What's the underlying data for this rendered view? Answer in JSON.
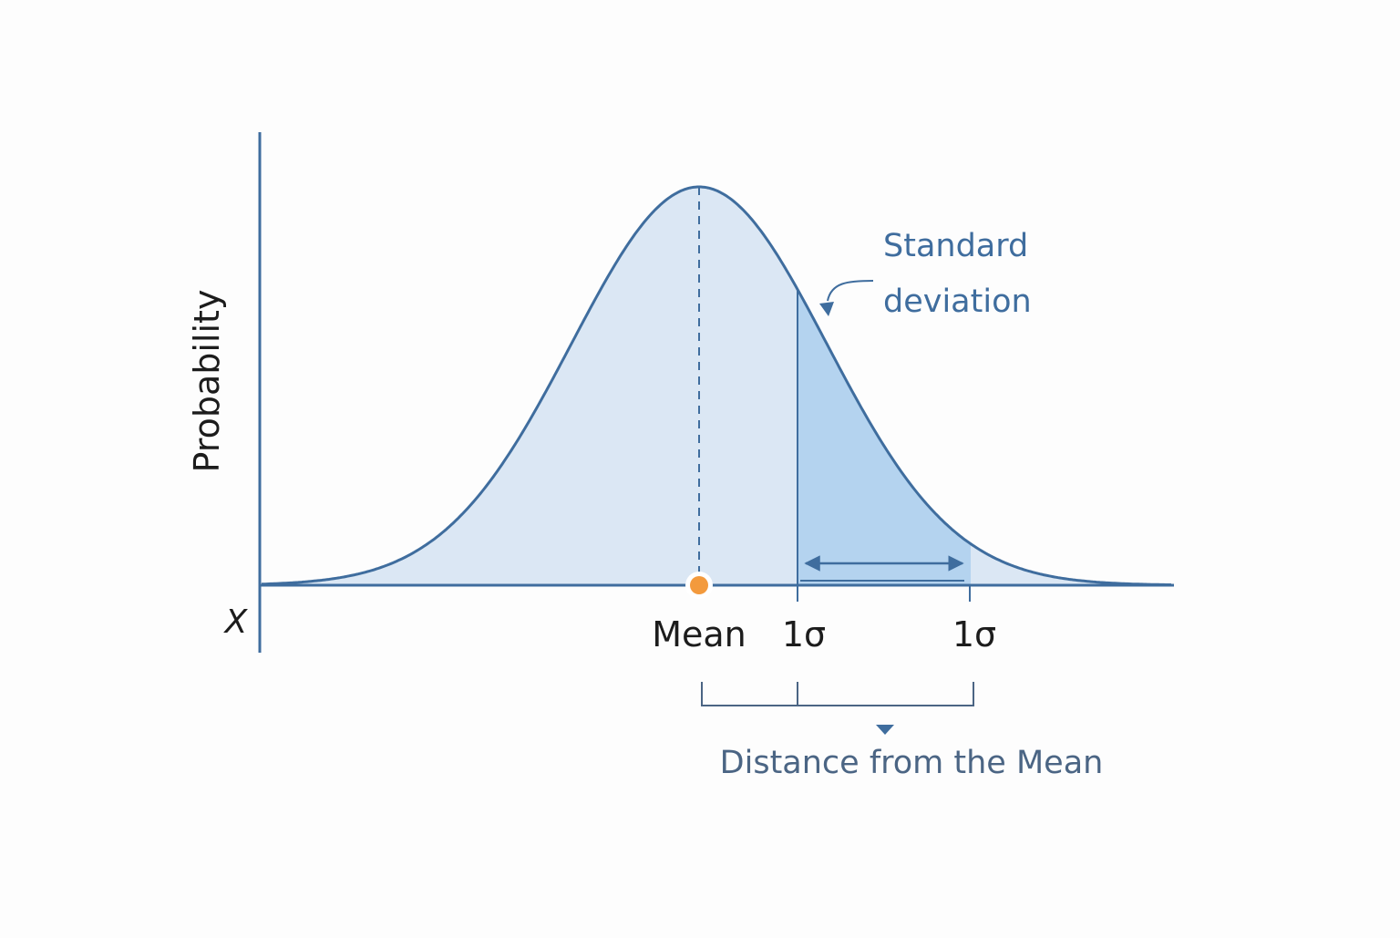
{
  "diagram": {
    "y_axis_label": "Probability",
    "x_variable_label": "X",
    "mean_label": "Mean",
    "sigma_labels": [
      "1σ",
      "1σ"
    ],
    "callout_lines": [
      "Standard",
      "deviation"
    ],
    "bracket_label": "Distance from the Mean"
  },
  "colors": {
    "curve_stroke": "#3f6d9e",
    "curve_fill": "#dbe7f4",
    "sigma_band_fill": "#b4d3ef",
    "axis": "#3f6d9e",
    "accent_text": "#3f6d9e",
    "bracket_text": "#4b6584",
    "mean_marker": "#f39a3d",
    "label_text": "#1c1c1c"
  }
}
